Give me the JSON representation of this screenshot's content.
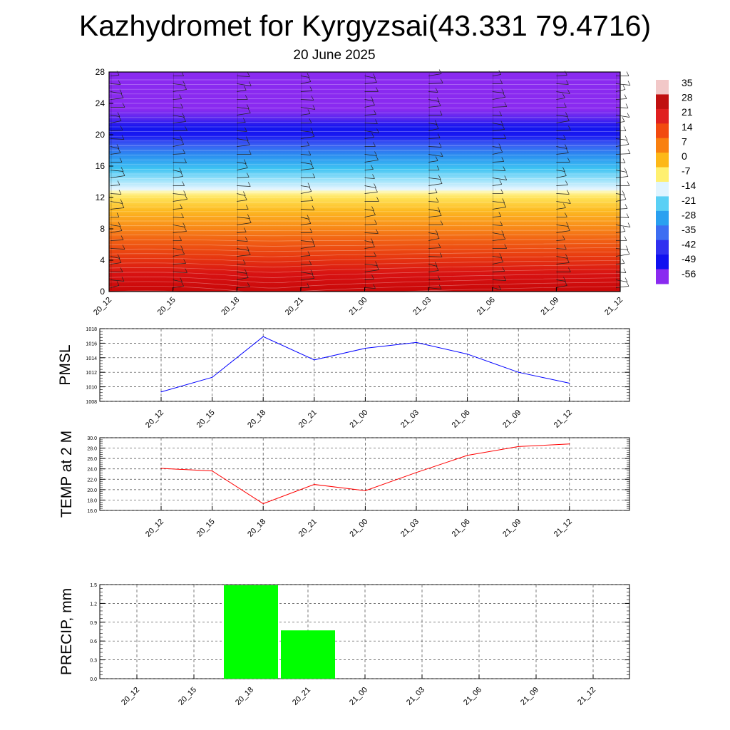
{
  "title": "Kazhydromet for Kyrgyzsai(43.331 79.4716)",
  "subtitle": "20 June 2025",
  "colorbar": {
    "labels": [
      "35",
      "28",
      "21",
      "14",
      "7",
      "0",
      "-7",
      "-14",
      "-21",
      "-28",
      "-35",
      "-42",
      "-49",
      "-56"
    ],
    "colors": [
      "#f2c8c8",
      "#c01010",
      "#e02020",
      "#f24a10",
      "#f98010",
      "#fdb818",
      "#fff070",
      "#e0f4ff",
      "#5ad0f5",
      "#2aa0f0",
      "#3d6ef2",
      "#3030f0",
      "#1010f0",
      "#8a2af0"
    ]
  },
  "chart_data": [
    {
      "type": "heatmap",
      "ylabel": "",
      "y_ticks": [
        "0",
        "4",
        "8",
        "12",
        "16",
        "20",
        "24",
        "28"
      ],
      "ylim": [
        0,
        28
      ],
      "x_ticks": [
        "20_12",
        "20_15",
        "20_18",
        "20_21",
        "21_00",
        "21_03",
        "21_06",
        "21_09",
        "21_12"
      ],
      "value_range": [
        -56,
        35
      ],
      "level_bands": [
        {
          "from": 0,
          "to": 3,
          "value": 30
        },
        {
          "from": 3,
          "to": 6,
          "value": 24
        },
        {
          "from": 6,
          "to": 9,
          "value": 14
        },
        {
          "from": 9,
          "to": 12.8,
          "value": 4
        },
        {
          "from": 12.8,
          "to": 16,
          "value": -20
        },
        {
          "from": 16,
          "to": 19,
          "value": -40
        },
        {
          "from": 19,
          "to": 22,
          "value": -56
        },
        {
          "from": 22,
          "to": 28,
          "value": -58
        }
      ]
    },
    {
      "type": "line",
      "ylabel": "PMSL",
      "categories": [
        "20_12",
        "20_15",
        "20_18",
        "20_21",
        "21_00",
        "21_03",
        "21_06",
        "21_09",
        "21_12"
      ],
      "values": [
        1009.3,
        1011.3,
        1016.9,
        1013.7,
        1015.3,
        1016.1,
        1014.5,
        1012.0,
        1010.5
      ],
      "y_ticks": [
        "1008",
        "1010",
        "1012",
        "1014",
        "1016",
        "1018"
      ],
      "ylim": [
        1008,
        1018
      ],
      "color": "#0000ff"
    },
    {
      "type": "line",
      "ylabel": "TEMP at 2 M",
      "categories": [
        "20_12",
        "20_15",
        "20_18",
        "20_21",
        "21_00",
        "21_03",
        "21_06",
        "21_09",
        "21_12"
      ],
      "values": [
        24.1,
        23.6,
        17.3,
        21.0,
        19.8,
        23.3,
        26.6,
        28.3,
        28.8
      ],
      "y_ticks": [
        "16.0",
        "18.0",
        "20.0",
        "22.0",
        "24.0",
        "26.0",
        "28.0",
        "30.0"
      ],
      "ylim": [
        16,
        30
      ],
      "color": "#ff0000"
    },
    {
      "type": "bar",
      "ylabel": "PRECIP, mm",
      "categories": [
        "20_12",
        "20_15",
        "20_18",
        "20_21",
        "21_00",
        "21_03",
        "21_06",
        "21_09",
        "21_12"
      ],
      "values": [
        0,
        0,
        1.49,
        0.77,
        0,
        0,
        0,
        0,
        0
      ],
      "y_ticks": [
        "0.0",
        "0.3",
        "0.6",
        "0.9",
        "1.2",
        "1.5"
      ],
      "ylim": [
        0,
        1.5
      ],
      "color": "#00ff00"
    }
  ]
}
